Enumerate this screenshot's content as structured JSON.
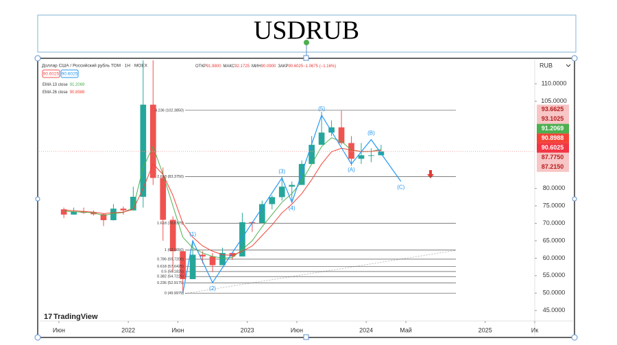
{
  "chart_data": {
    "type": "candlestick",
    "title": "USDRUB",
    "instrument": "Доллар США / Российский рубль ТОМ · 1Н · MOEX",
    "ohlc_header": [
      {
        "key": "ОТКР",
        "text": "91.9800"
      },
      {
        "key": "МАКС",
        "text": "92.1725"
      },
      {
        "key": "МИН",
        "text": "90.0900"
      },
      {
        "key": "ЗАКР",
        "text": "90.6025"
      },
      {
        "key": "",
        "text": "−1.0675 (−1.16%)"
      }
    ],
    "currency": "RUB",
    "brand": "TradingView",
    "up_color": "#26a69a",
    "down_color": "#ef5350",
    "x": [
      "2021-06",
      "2021-07",
      "2021-08",
      "2021-09",
      "2021-10",
      "2021-11",
      "2021-12",
      "2022-01",
      "2022-02",
      "2022-03",
      "2022-04",
      "2022-05",
      "2022-06",
      "2022-07",
      "2022-08",
      "2022-09",
      "2022-10",
      "2022-11",
      "2022-12",
      "2023-01",
      "2023-02",
      "2023-03",
      "2023-04",
      "2023-05",
      "2023-06",
      "2023-07",
      "2023-08",
      "2023-09",
      "2023-10",
      "2023-11",
      "2023-12",
      "2024-01",
      "2024-02"
    ],
    "open": [
      74,
      72.5,
      73.3,
      73,
      72.6,
      70.9,
      74.2,
      73.7,
      77.6,
      104,
      83,
      71,
      62,
      54,
      61,
      60.5,
      58,
      61.5,
      60.5,
      70.3,
      70.1,
      75.5,
      77.5,
      80.5,
      81,
      87,
      92.5,
      96,
      97.5,
      93,
      88.5,
      89.5,
      89.5
    ],
    "high": [
      74.5,
      74.5,
      74.5,
      73.7,
      72.7,
      75.5,
      74.8,
      80.5,
      120,
      120,
      86,
      72,
      62,
      65,
      62,
      61.5,
      63,
      61.5,
      73,
      70.5,
      76.5,
      78,
      83.5,
      82,
      88,
      95,
      102,
      99.5,
      102.3,
      95,
      93,
      91.5,
      92.5
    ],
    "low": [
      71.5,
      72.5,
      72.7,
      72.2,
      69.2,
      70.8,
      72.5,
      73.7,
      74.5,
      81,
      65,
      56,
      50.5,
      54,
      58.5,
      56,
      58,
      59.5,
      60.5,
      67.5,
      70,
      74,
      76.5,
      76.5,
      81,
      87,
      92.5,
      95,
      92.5,
      86.5,
      87,
      87.5,
      89.5
    ],
    "close": [
      72.5,
      73.3,
      73,
      72.6,
      70.9,
      74.2,
      73.7,
      77.6,
      104,
      83,
      71,
      62,
      54,
      61,
      60.5,
      58,
      61.5,
      60.5,
      70.3,
      70.1,
      75.5,
      77.5,
      80.5,
      81,
      87,
      92.5,
      96,
      97.5,
      93,
      88.5,
      89.5,
      89.5,
      90.6025
    ],
    "series": [
      {
        "name": "EMA 13 close",
        "color": "#4caf50",
        "values": [
          73.5,
          73.3,
          73.2,
          73,
          72.2,
          72.8,
          73.1,
          74.5,
          86,
          92,
          84,
          75,
          66,
          63,
          61.5,
          60.5,
          60,
          60.2,
          62.5,
          65,
          69,
          72.5,
          76,
          78.5,
          82,
          87,
          92,
          94.5,
          93.5,
          91,
          90.5,
          90.6,
          91.2069
        ]
      },
      {
        "name": "EMA 26 close",
        "color": "#f44336",
        "values": [
          73.8,
          73.6,
          73.4,
          73.2,
          72.8,
          73,
          73.2,
          74,
          80,
          87,
          84,
          78,
          70,
          66,
          63.5,
          62,
          61,
          60.8,
          62,
          63.5,
          66.5,
          69.5,
          73,
          75.5,
          78.5,
          82.5,
          87,
          90.5,
          91.5,
          91,
          90.6,
          90.6,
          90.8988
        ]
      }
    ],
    "xlim": [
      "2021-04",
      "2025-06"
    ],
    "xticks": [
      {
        "value": "2021-06",
        "label": "Июн"
      },
      {
        "value": "2022-01",
        "label": "2022"
      },
      {
        "value": "2022-06",
        "label": "Июн"
      },
      {
        "value": "2023-01",
        "label": "2023"
      },
      {
        "value": "2023-06",
        "label": "Июн"
      },
      {
        "value": "2024-01",
        "label": "2024"
      },
      {
        "value": "2024-05",
        "label": "Май"
      },
      {
        "value": "2025-01",
        "label": "2025"
      },
      {
        "value": "2025-06",
        "label": "Ик"
      }
    ],
    "ylim": [
      42,
      116.7
    ],
    "yticks": [
      {
        "value": 45,
        "label": "45.0000"
      },
      {
        "value": 50,
        "label": "50.0000"
      },
      {
        "value": 55,
        "label": "55.0000"
      },
      {
        "value": 60,
        "label": "60.0000"
      },
      {
        "value": 65,
        "label": "65.0000"
      },
      {
        "value": 70,
        "label": "70.0000"
      },
      {
        "value": 75,
        "label": "75.0000"
      },
      {
        "value": 80,
        "label": "80.0000"
      },
      {
        "value": 105,
        "label": "105.0000"
      },
      {
        "value": 110,
        "label": "110.0000"
      }
    ],
    "fib_levels": [
      {
        "value": 102.385,
        "label": "4.236 (102.3850)"
      },
      {
        "value": 83.375,
        "label": "2.618 (83.3750)"
      },
      {
        "value": 70.0375,
        "label": "1.618 (70.0375)"
      },
      {
        "value": 62.365,
        "label": "1 (62.3650)"
      },
      {
        "value": 59.72,
        "label": "0.786 (59.7200)"
      },
      {
        "value": 57.6425,
        "label": "0.618 (57.6425)"
      },
      {
        "value": 56.1825,
        "label": "0.5 (56.1825)"
      },
      {
        "value": 54.7225,
        "label": "0.382 (54.7225)"
      },
      {
        "value": 52.9175,
        "label": "0.236 (52.9175)"
      },
      {
        "value": 49.9975,
        "label": "0 (49.9975)"
      }
    ],
    "waves": [
      {
        "label": null,
        "x": "2022-06",
        "y": 50
      },
      {
        "label": "(1)",
        "x": "2022-07",
        "y": 65
      },
      {
        "label": "(2)",
        "x": "2022-09",
        "y": 53
      },
      {
        "label": "(3)",
        "x": "2023-04",
        "y": 83
      },
      {
        "label": "(4)",
        "x": "2023-05",
        "y": 76
      },
      {
        "label": "(5)",
        "x": "2023-08",
        "y": 101
      },
      {
        "label": "(A)",
        "x": "2023-11",
        "y": 87
      },
      {
        "label": "(B)",
        "x": "2024-01",
        "y": 94
      },
      {
        "label": "(C)",
        "x": "2024-04",
        "y": 82
      }
    ],
    "wave_color": "#2196f3",
    "price_tags": [
      93.6625,
      93.1025,
      {
        "value": 87.775,
        "label": "87.7750"
      },
      {
        "value": 87.215,
        "label": "87.2150"
      }
    ],
    "price_tag_color": "#f7c5c5"
  }
}
